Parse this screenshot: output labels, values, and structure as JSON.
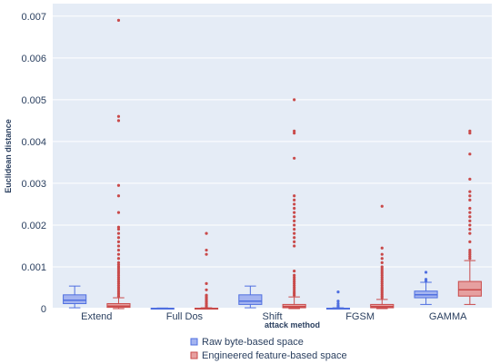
{
  "chart_data": {
    "type": "box",
    "xlabel": "attack method",
    "ylabel": "Euclidean distance",
    "ylim": [
      0,
      0.0073
    ],
    "yticks": [
      0,
      0.001,
      0.002,
      0.003,
      0.004,
      0.005,
      0.006,
      0.007
    ],
    "ytick_labels": [
      "0",
      "0.001",
      "0.002",
      "0.003",
      "0.004",
      "0.005",
      "0.006",
      "0.007"
    ],
    "categories": [
      "Extend",
      "Full Dos",
      "Shift",
      "FGSM",
      "GAMMA"
    ],
    "legend_position": "bottom-center",
    "grid": true,
    "series": [
      {
        "name": "Raw byte-based space",
        "fill": "#a4b4f0",
        "line": "#4f6fe0",
        "boxes": [
          {
            "min": 2e-05,
            "q1": 0.00012,
            "median": 0.0002,
            "q3": 0.00033,
            "max": 0.00054,
            "outliers": []
          },
          {
            "min": 0.0,
            "q1": 3e-06,
            "median": 6e-06,
            "q3": 1e-05,
            "max": 1.5e-05,
            "outliers": []
          },
          {
            "min": 2e-05,
            "q1": 0.0001,
            "median": 0.00018,
            "q3": 0.00033,
            "max": 0.00054,
            "outliers": []
          },
          {
            "min": 0.0,
            "q1": 2e-06,
            "median": 5e-06,
            "q3": 1e-05,
            "max": 2e-05,
            "outliers": [
              4e-05,
              7e-05,
              0.00012,
              0.00018,
              0.0004
            ]
          },
          {
            "min": 0.0001,
            "q1": 0.00026,
            "median": 0.00033,
            "q3": 0.00042,
            "max": 0.00063,
            "outliers": [
              0.00066,
              0.0007,
              0.00087
            ]
          }
        ]
      },
      {
        "name": "Engineered feature-based space",
        "fill": "#e6a0a0",
        "line": "#c94a4a",
        "boxes": [
          {
            "min": 0.0,
            "q1": 3e-05,
            "median": 6e-05,
            "q3": 0.00012,
            "max": 0.00026,
            "outliers": [
              0.0003,
              0.00035,
              0.0004,
              0.00045,
              0.0005,
              0.00055,
              0.0006,
              0.00065,
              0.0007,
              0.00075,
              0.0008,
              0.00085,
              0.0009,
              0.00095,
              0.001,
              0.00105,
              0.0011,
              0.0012,
              0.0013,
              0.0014,
              0.0015,
              0.0016,
              0.0017,
              0.0018,
              0.0019,
              0.00195,
              0.0023,
              0.0027,
              0.00295,
              0.0045,
              0.0046,
              0.0069
            ]
          },
          {
            "min": 0.0,
            "q1": 0.0,
            "median": 5e-06,
            "q3": 1e-05,
            "max": 2e-05,
            "outliers": [
              4e-05,
              8e-05,
              0.00012,
              0.00016,
              0.0002,
              0.00024,
              0.00028,
              0.00032,
              0.00045,
              0.0006,
              0.0013,
              0.0014,
              0.0018
            ]
          },
          {
            "min": 0.0,
            "q1": 2e-05,
            "median": 5e-05,
            "q3": 0.0001,
            "max": 0.00028,
            "outliers": [
              0.00032,
              0.00036,
              0.0004,
              0.00045,
              0.0005,
              0.00055,
              0.0006,
              0.00065,
              0.0007,
              0.00075,
              0.0008,
              0.0009,
              0.0015,
              0.0016,
              0.0017,
              0.0018,
              0.0019,
              0.002,
              0.0021,
              0.0022,
              0.0023,
              0.0024,
              0.0025,
              0.0026,
              0.0027,
              0.0036,
              0.0042,
              0.00425,
              0.005
            ]
          },
          {
            "min": 0.0,
            "q1": 2e-05,
            "median": 5e-05,
            "q3": 0.0001,
            "max": 0.00022,
            "outliers": [
              0.00026,
              0.0003,
              0.00034,
              0.00038,
              0.00042,
              0.00046,
              0.0005,
              0.00055,
              0.0006,
              0.00065,
              0.0007,
              0.00075,
              0.0008,
              0.00085,
              0.0009,
              0.00095,
              0.001,
              0.0011,
              0.0012,
              0.0013,
              0.00145,
              0.00245
            ]
          },
          {
            "min": 0.0001,
            "q1": 0.0003,
            "median": 0.00045,
            "q3": 0.00065,
            "max": 0.00115,
            "outliers": [
              0.0012,
              0.00125,
              0.0013,
              0.00135,
              0.0014,
              0.0016,
              0.0018,
              0.0019,
              0.002,
              0.0021,
              0.0022,
              0.0023,
              0.0024,
              0.0026,
              0.0027,
              0.0028,
              0.0031,
              0.0037,
              0.0042,
              0.00425
            ]
          }
        ]
      }
    ]
  }
}
